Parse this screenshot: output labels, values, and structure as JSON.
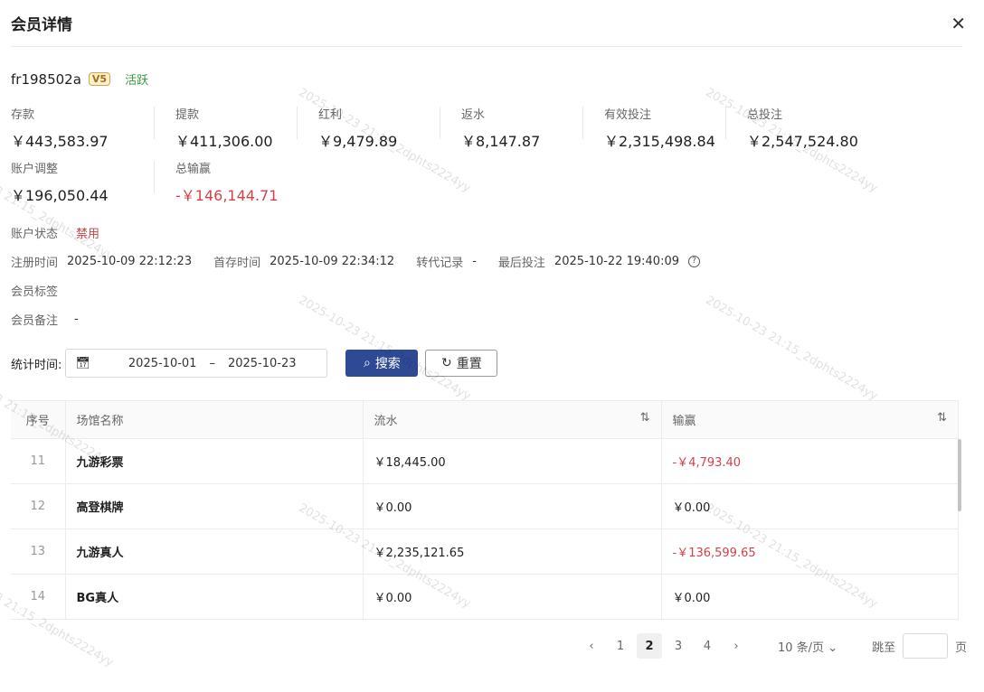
{
  "title": "会员详情",
  "user": {
    "name": "fr198502a",
    "vip": "V5",
    "status": "活跃"
  },
  "stats": [
    {
      "label": "存款",
      "value": "￥443,583.97"
    },
    {
      "label": "提款",
      "value": "￥411,306.00"
    },
    {
      "label": "红利",
      "value": "￥9,479.89"
    },
    {
      "label": "返水",
      "value": "￥8,147.87"
    },
    {
      "label": "有效投注",
      "value": "￥2,315,498.84"
    },
    {
      "label": "总投注",
      "value": "￥2,547,524.80"
    },
    {
      "label": "账户调整",
      "value": "￥196,050.44"
    },
    {
      "label": "总输赢",
      "value": "-￥146,144.71"
    }
  ],
  "account": {
    "status_label": "账户状态",
    "status": "禁用",
    "reg_label": "注册时间",
    "reg": "2025-10-09 22:12:23",
    "first_label": "首存时间",
    "first": "2025-10-09 22:34:12",
    "transfer_label": "转代记录",
    "transfer": "-",
    "last_label": "最后投注",
    "last": "2025-10-22 19:40:09",
    "tags_label": "会员标签",
    "note_label": "会员备注",
    "note": "-"
  },
  "filter": {
    "label": "统计时间:",
    "start": "2025-10-01",
    "sep": "–",
    "end": "2025-10-23",
    "search": "搜索",
    "reset": "重置"
  },
  "table": {
    "headers": [
      "序号",
      "场馆名称",
      "流水",
      "输赢"
    ],
    "rows": [
      {
        "no": "11",
        "venue": "九游彩票",
        "flow": "￥18,445.00",
        "win": "-￥4,793.40",
        "neg": true
      },
      {
        "no": "12",
        "venue": "高登棋牌",
        "flow": "￥0.00",
        "win": "￥0.00",
        "neg": false
      },
      {
        "no": "13",
        "venue": "九游真人",
        "flow": "￥2,235,121.65",
        "win": "-￥136,599.65",
        "neg": true
      },
      {
        "no": "14",
        "venue": "BG真人",
        "flow": "￥0.00",
        "win": "￥0.00",
        "neg": false
      }
    ]
  },
  "pager": {
    "pages": [
      "1",
      "2",
      "3",
      "4"
    ],
    "current": "2",
    "size": "10 条/页",
    "jump": "跳至",
    "page_unit": "页"
  },
  "watermark": "2025-10-23 21:15_2dphts2224yy"
}
